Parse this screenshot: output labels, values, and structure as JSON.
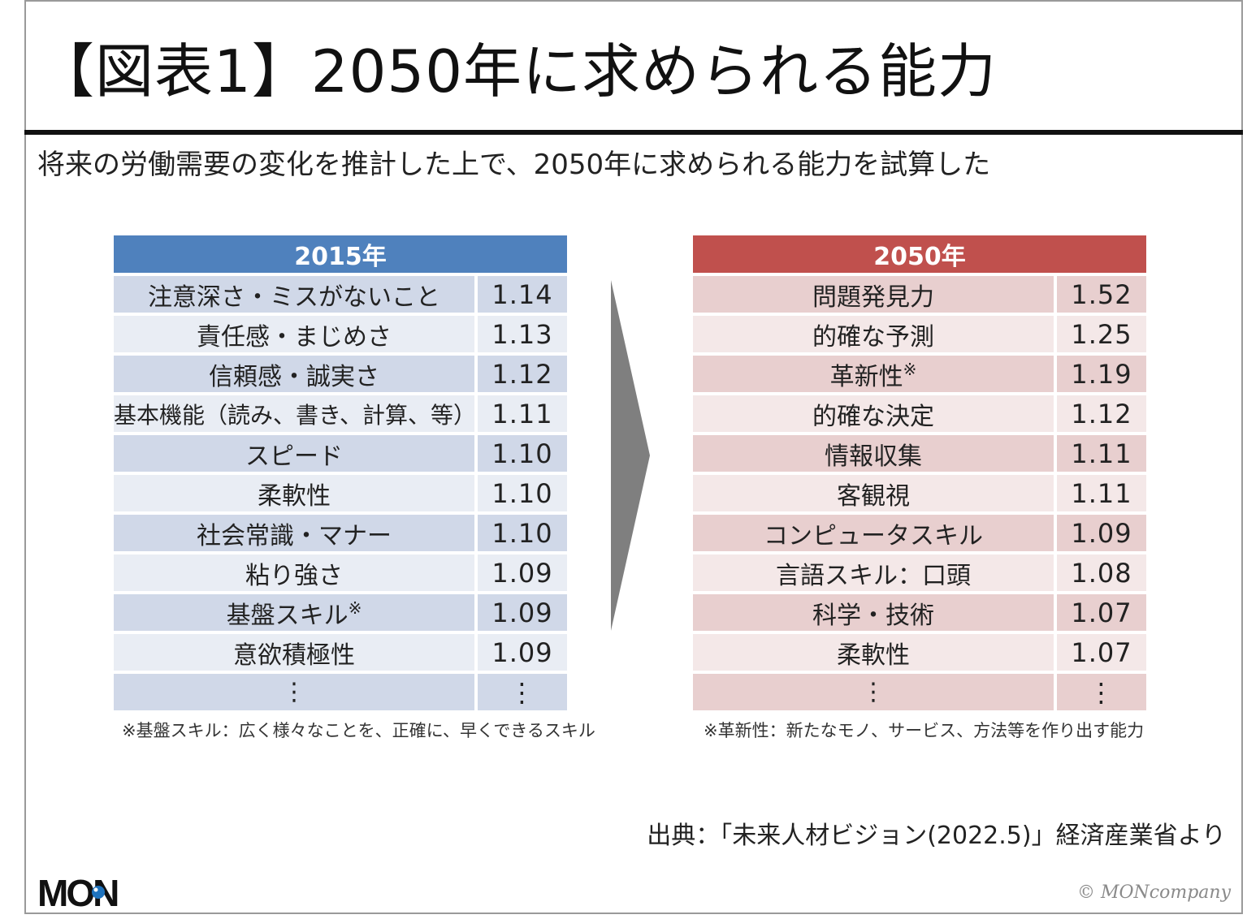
{
  "title": "【図表1】2050年に求められる能力",
  "subtitle": "将来の労働需要の変化を推計した上で、2050年に求められる能力を試算した",
  "table_2015": {
    "header": "2015年",
    "rows": [
      {
        "label": "注意深さ・ミスがないこと",
        "value": "1.14"
      },
      {
        "label": "責任感・まじめさ",
        "value": "1.13"
      },
      {
        "label": "信頼感・誠実さ",
        "value": "1.12"
      },
      {
        "label": "基本機能（読み、書き、計算、等）",
        "value": "1.11"
      },
      {
        "label": "スピード",
        "value": "1.10"
      },
      {
        "label": "柔軟性",
        "value": "1.10"
      },
      {
        "label": "社会常識・マナー",
        "value": "1.10"
      },
      {
        "label": "粘り強さ",
        "value": "1.09"
      },
      {
        "label": "基盤スキル",
        "value": "1.09"
      },
      {
        "label": "意欲積極性",
        "value": "1.09"
      },
      {
        "label": "⋮",
        "value": "⋮"
      }
    ],
    "footnote_mark": "※",
    "note": "※基盤スキル：広く様々なことを、正確に、早くできるスキル"
  },
  "table_2050": {
    "header": "2050年",
    "rows": [
      {
        "label": "問題発見力",
        "value": "1.52"
      },
      {
        "label": "的確な予測",
        "value": "1.25"
      },
      {
        "label": "革新性",
        "value": "1.19"
      },
      {
        "label": "的確な決定",
        "value": "1.12"
      },
      {
        "label": "情報収集",
        "value": "1.11"
      },
      {
        "label": "客観視",
        "value": "1.11"
      },
      {
        "label": "コンピュータスキル",
        "value": "1.09"
      },
      {
        "label": "言語スキル：口頭",
        "value": "1.08"
      },
      {
        "label": "科学・技術",
        "value": "1.07"
      },
      {
        "label": "柔軟性",
        "value": "1.07"
      },
      {
        "label": "⋮",
        "value": "⋮"
      }
    ],
    "footnote_mark": "※",
    "note": "※革新性：新たなモノ、サービス、方法等を作り出す能力"
  },
  "source": "出典：「未来人材ビジョン(2022.5)」経済産業省より",
  "logo_text": "MON",
  "copyright": "© MONcompany",
  "colors": {
    "header_2015": "#4f81bd",
    "header_2050": "#c0504d",
    "arrow": "#7f7f7f"
  }
}
